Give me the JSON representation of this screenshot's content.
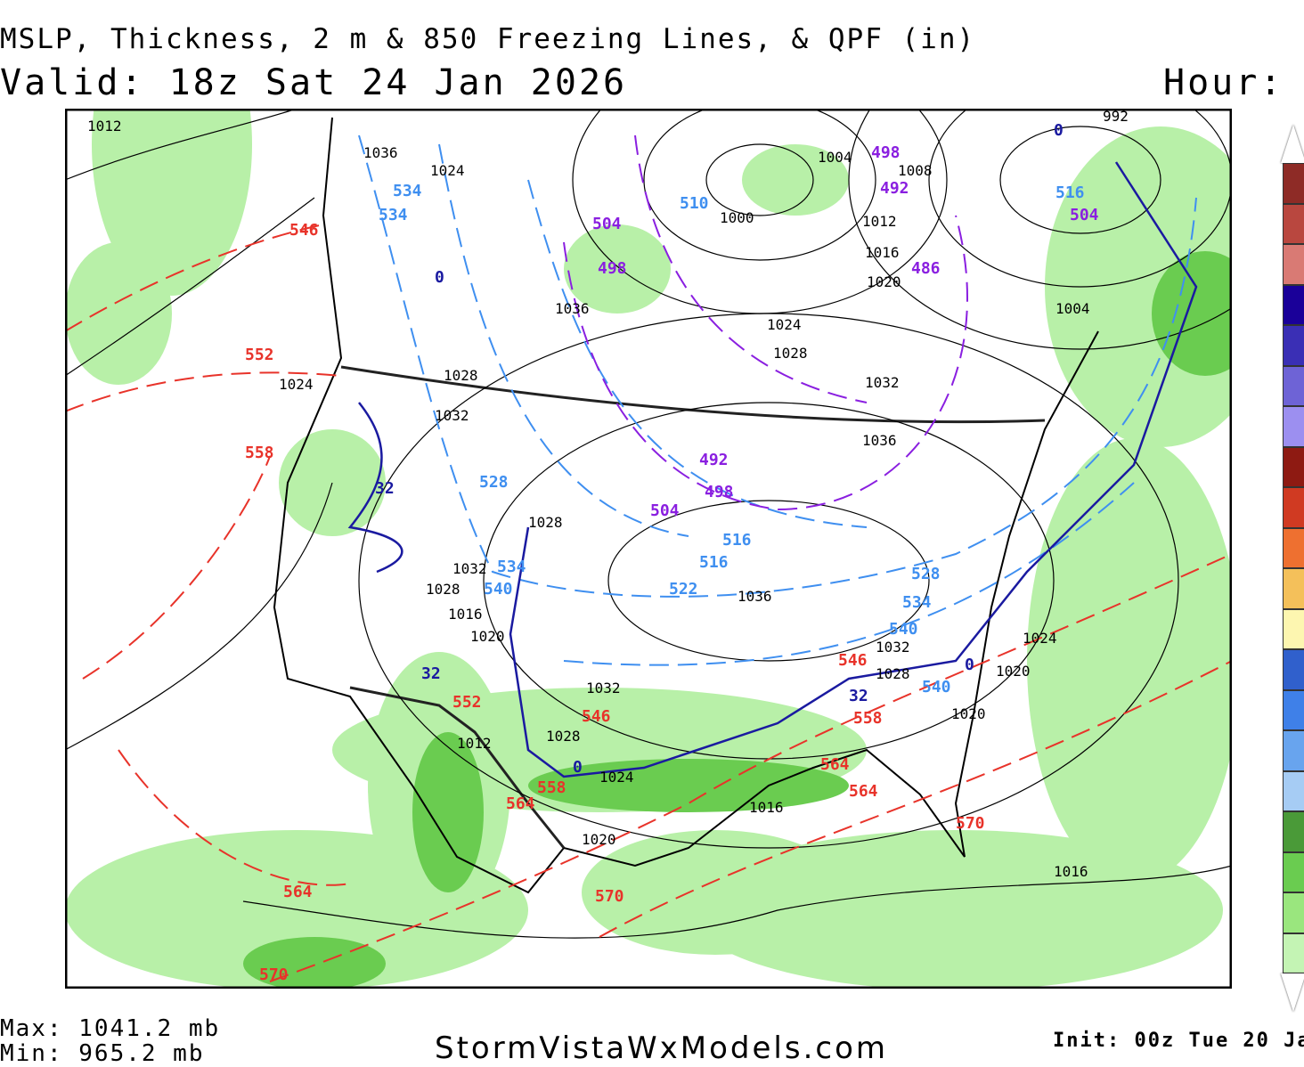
{
  "header": {
    "title": "MSLP, Thickness, 2 m & 850 Freezing Lines, & QPF (in)",
    "valid": "Valid: 18z Sat 24 Jan 2026",
    "hour_label": "Hour:"
  },
  "footer": {
    "max": "Max: 1041.2 mb",
    "min": "Min: 965.2 mb",
    "site": "StormVistaWxModels.com",
    "init": "Init: 00z Tue 20 Ja"
  },
  "legend": {
    "colors": [
      "#8e2b26",
      "#b9473f",
      "#d97a74",
      "#1a0099",
      "#3a2fb5",
      "#6e63d6",
      "#9c8ff0",
      "#8e1a12",
      "#d03a22",
      "#ee7030",
      "#f4c05a",
      "#fdf6b0",
      "#3060cc",
      "#3f80e8",
      "#68a4ee",
      "#a6ccf4",
      "#4a9a38",
      "#6acc50",
      "#9ae67e",
      "#c4f4b4"
    ]
  },
  "colors": {
    "isobar": "#000000",
    "thickness_warm": "#e8332a",
    "thickness_cold": "#3f8ff0",
    "thickness_very_cold": "#8a1fe0",
    "freezing_line": "#1a1aa0",
    "qpf_light": "#b8f0a8",
    "qpf_mod": "#6acc50"
  },
  "labels": {
    "isobars": [
      "1012",
      "1036",
      "1024",
      "1028",
      "1032",
      "1036",
      "1000",
      "1004",
      "1008",
      "1012",
      "1016",
      "1020",
      "1024",
      "1028",
      "1032",
      "1036",
      "1004",
      "992",
      "1024",
      "1028",
      "1032",
      "1028",
      "1020",
      "1016",
      "1032",
      "1028",
      "1012",
      "1024",
      "1020",
      "1016",
      "1016",
      "1020",
      "1024",
      "1020",
      "1036",
      "1032",
      "1028"
    ],
    "thickness_warm": [
      "546",
      "552",
      "558",
      "552",
      "546",
      "558",
      "564",
      "564",
      "570",
      "564",
      "570",
      "546",
      "558",
      "564",
      "570"
    ],
    "thickness_cold": [
      "534",
      "534",
      "510",
      "516",
      "528",
      "540",
      "534",
      "540",
      "516",
      "516",
      "522",
      "528",
      "534",
      "540"
    ],
    "thickness_very_cold": [
      "504",
      "498",
      "498",
      "492",
      "486",
      "504",
      "492",
      "498",
      "504"
    ],
    "freezing": [
      "32",
      "32",
      "0",
      "32",
      "0",
      "0",
      "0"
    ]
  }
}
